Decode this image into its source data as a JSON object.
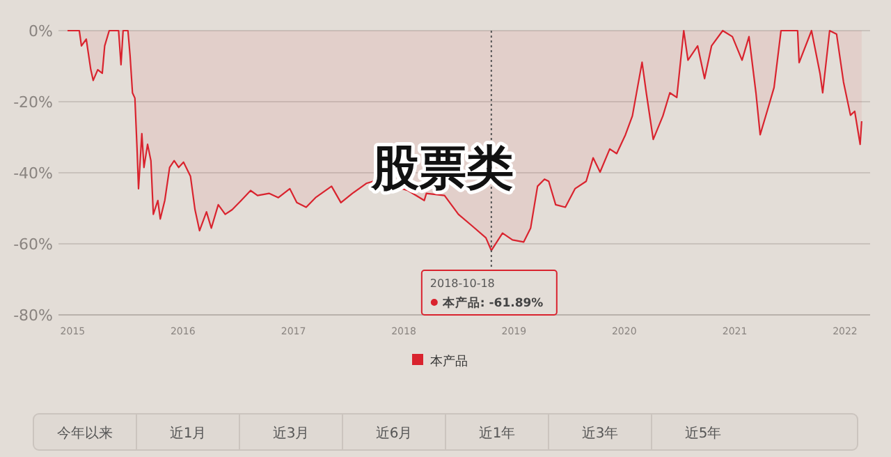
{
  "chart_data": {
    "type": "area",
    "xlim": [
      "2014-11-15",
      "2022-03-25"
    ],
    "ylim": [
      -80,
      0
    ],
    "xticks": [
      {
        "value": "2015-01-01",
        "label": "2015"
      },
      {
        "value": "2016-01-01",
        "label": "2016"
      },
      {
        "value": "2017-01-01",
        "label": "2017"
      },
      {
        "value": "2018-01-01",
        "label": "2018"
      },
      {
        "value": "2019-01-01",
        "label": "2019"
      },
      {
        "value": "2020-01-01",
        "label": "2020"
      },
      {
        "value": "2021-01-01",
        "label": "2021"
      },
      {
        "value": "2022-01-01",
        "label": "2022"
      }
    ],
    "yticks": [
      {
        "value": 0,
        "label": "0%"
      },
      {
        "value": -20,
        "label": "-20%"
      },
      {
        "value": -40,
        "label": "-40%"
      },
      {
        "value": -60,
        "label": "-60%"
      },
      {
        "value": -80,
        "label": "-80%"
      }
    ],
    "grid": "y",
    "legend": "bottom",
    "x": [
      "2014-12-15",
      "2015-01-23",
      "2015-01-30",
      "2015-02-15",
      "2015-03-02",
      "2015-03-10",
      "2015-03-25",
      "2015-04-09",
      "2015-04-17",
      "2015-05-02",
      "2015-06-02",
      "2015-06-10",
      "2015-06-17",
      "2015-07-03",
      "2015-07-10",
      "2015-07-18",
      "2015-07-26",
      "2015-08-02",
      "2015-08-07",
      "2015-08-18",
      "2015-08-25",
      "2015-09-06",
      "2015-09-17",
      "2015-09-25",
      "2015-10-10",
      "2015-10-18",
      "2015-11-02",
      "2015-11-18",
      "2015-12-03",
      "2015-12-18",
      "2016-01-03",
      "2016-01-26",
      "2016-02-10",
      "2016-02-25",
      "2016-03-19",
      "2016-04-04",
      "2016-04-27",
      "2016-05-20",
      "2016-06-12",
      "2016-07-12",
      "2016-08-12",
      "2016-09-04",
      "2016-10-12",
      "2016-11-12",
      "2016-12-20",
      "2017-01-12",
      "2017-02-12",
      "2017-03-15",
      "2017-05-07",
      "2017-06-07",
      "2017-07-15",
      "2017-08-30",
      "2017-10-15",
      "2017-11-30",
      "2018-01-15",
      "2018-03-10",
      "2018-03-17",
      "2018-05-16",
      "2018-07-01",
      "2018-08-16",
      "2018-09-30",
      "2018-10-18",
      "2018-11-24",
      "2018-12-27",
      "2019-02-02",
      "2019-02-25",
      "2019-03-20",
      "2019-04-12",
      "2019-04-26",
      "2019-05-19",
      "2019-06-20",
      "2019-07-22",
      "2019-08-28",
      "2019-09-20",
      "2019-10-13",
      "2019-11-14",
      "2019-12-07",
      "2020-01-05",
      "2020-01-28",
      "2020-02-29",
      "2020-03-14",
      "2020-04-06",
      "2020-05-08",
      "2020-05-31",
      "2020-06-23",
      "2020-07-16",
      "2020-07-30",
      "2020-08-31",
      "2020-09-23",
      "2020-10-16",
      "2020-11-22",
      "2020-12-24",
      "2021-01-25",
      "2021-02-17",
      "2021-03-12",
      "2021-03-26",
      "2021-04-18",
      "2021-05-11",
      "2021-06-03",
      "2021-07-28",
      "2021-08-02",
      "2021-09-12",
      "2021-10-10",
      "2021-10-19",
      "2021-11-11",
      "2021-12-04",
      "2021-12-27",
      "2022-01-19",
      "2022-02-02",
      "2022-02-20",
      "2022-02-25"
    ],
    "series": [
      {
        "name": "本产品",
        "color": "#d9232e",
        "values": [
          0,
          0,
          -4.3,
          -2.4,
          -11,
          -14,
          -11,
          -12,
          -4.3,
          0,
          0,
          -9.6,
          0,
          0,
          -7,
          -17.5,
          -19,
          -33,
          -44.5,
          -29,
          -38.5,
          -32,
          -36.6,
          -51.7,
          -47.8,
          -53,
          -47.8,
          -38.5,
          -36.6,
          -38.5,
          -37,
          -41,
          -50.4,
          -56.3,
          -51,
          -55.6,
          -49,
          -51.7,
          -50.4,
          -47.8,
          -45,
          -46.4,
          -45.8,
          -47,
          -44.5,
          -48.4,
          -49.7,
          -47,
          -43.8,
          -48.4,
          -45.8,
          -43,
          -41.8,
          -43.8,
          -45,
          -47.8,
          -45.8,
          -46.4,
          -51.7,
          -55,
          -58.3,
          -61.89,
          -57,
          -58.9,
          -59.5,
          -55.6,
          -43.8,
          -41.8,
          -42.4,
          -49,
          -49.7,
          -44.5,
          -42.4,
          -35.8,
          -39.8,
          -33.3,
          -34.6,
          -29.3,
          -24,
          -8.9,
          -17.5,
          -30.6,
          -24,
          -17.5,
          -18.8,
          0,
          -8.3,
          -4.3,
          -13.5,
          -4.3,
          0,
          -1.7,
          -8.3,
          -1.7,
          -17.5,
          -29.3,
          -22.7,
          -16,
          0,
          0,
          -9,
          0,
          -12,
          -17.5,
          0,
          -1,
          -14.5,
          -23.8,
          -22.7,
          -32,
          -25.5
        ]
      }
    ],
    "ref_lines": [
      {
        "axis": "x",
        "value": "2018-10-18",
        "label": "2018-10-18",
        "line_style": "dotted",
        "color": "#555555"
      }
    ],
    "annotations": [
      "本产品: -61.89%",
      "股票类",
      "今年以来",
      "近1月",
      "近3月",
      "近6月",
      "近1年",
      "近3年",
      "近5年"
    ]
  }
}
